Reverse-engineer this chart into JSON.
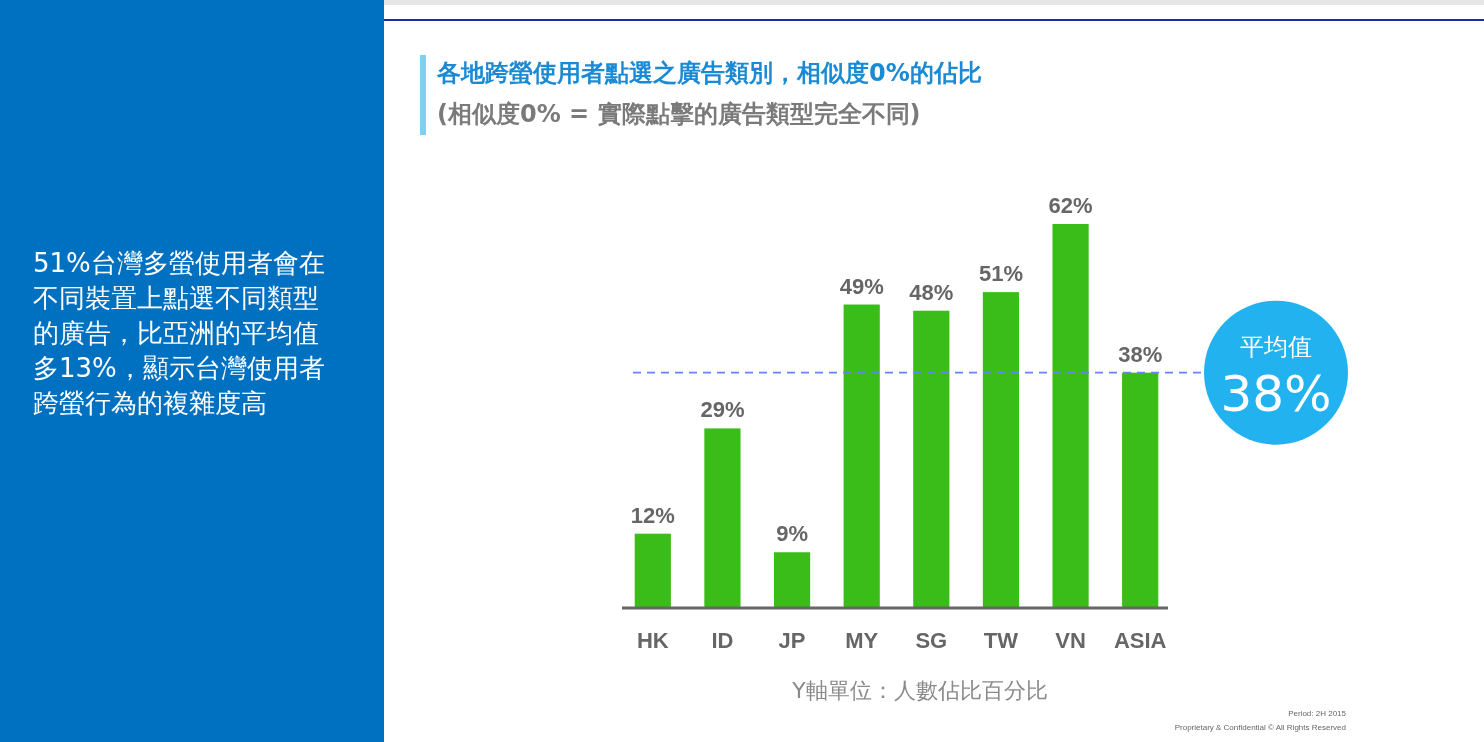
{
  "chart_data": {
    "type": "bar",
    "title": "各地跨螢使用者點選之廣告類別，相似度0%的佔比",
    "subtitle": "(相似度0% = 實際點擊的廣告類型完全不同)",
    "categories": [
      "HK",
      "ID",
      "JP",
      "MY",
      "SG",
      "TW",
      "VN",
      "ASIA"
    ],
    "values": [
      12,
      29,
      9,
      49,
      48,
      51,
      62,
      38
    ],
    "value_labels": [
      "12%",
      "29%",
      "9%",
      "49%",
      "48%",
      "51%",
      "62%",
      "38%"
    ],
    "color": "#3bbd19",
    "ref_lines": [
      {
        "axis": "y",
        "value": 38,
        "label": "平均值",
        "color": "#6d82f2",
        "line_style": "dashed"
      }
    ],
    "annotations": [
      "51%台灣多螢使用者會在不同裝置上點選不同類型的廣告，比亞洲的平均值多13%，顯示台灣使用者跨螢行為的複雜度高",
      "Y軸單位：人數佔比百分比",
      "38%",
      "Period: 2H 2015",
      "Proprietary & Confidential © All Rights Reserved"
    ]
  }
}
